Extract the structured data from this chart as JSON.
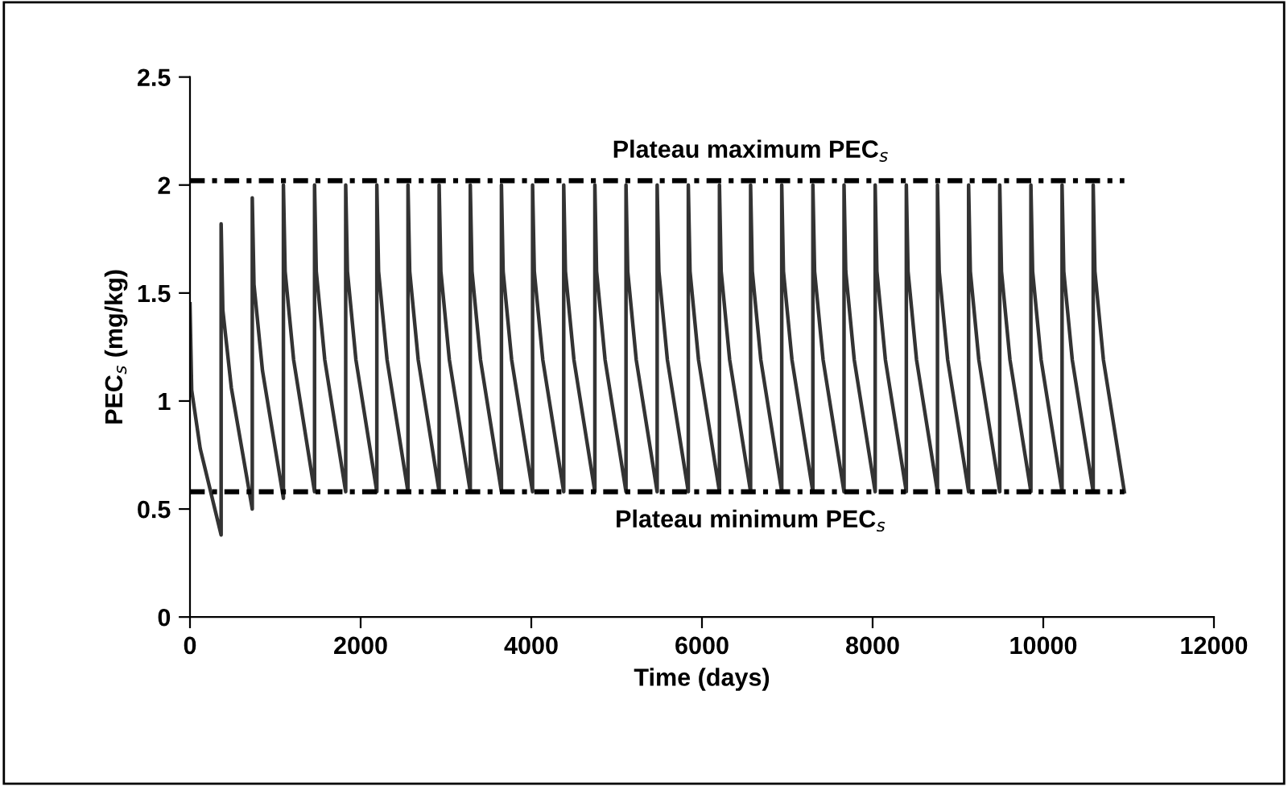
{
  "chart_data": {
    "type": "line",
    "xlabel": "Time (days)",
    "ylabel": "PEC$_{s}$ (mg/kg)",
    "xlim": [
      0,
      12000
    ],
    "xticks": [
      0,
      2000,
      4000,
      6000,
      8000,
      10000,
      12000
    ],
    "ylim": [
      0,
      2.5
    ],
    "yticks": [
      0,
      {
        "value": 0.5,
        "label": "0.5"
      },
      1,
      {
        "value": 1.5,
        "label": "1.5"
      },
      2,
      {
        "value": 2.5,
        "label": "2.5"
      }
    ],
    "grid": false,
    "legend": false,
    "marker": "none",
    "line_style": "solid",
    "series": [
      {
        "color": "#333333",
        "x": [
          0,
          20,
          120,
          365,
          365,
          385,
          485,
          730,
          730,
          750,
          850,
          1095,
          1095,
          1115,
          1215,
          1460,
          1460,
          1480,
          1580,
          1825,
          1825,
          1845,
          1945,
          2190,
          2190,
          2210,
          2310,
          2555,
          2555,
          2575,
          2675,
          2920,
          2920,
          2940,
          3040,
          3285,
          3285,
          3305,
          3405,
          3650,
          3650,
          3670,
          3770,
          4015,
          4015,
          4035,
          4135,
          4380,
          4380,
          4400,
          4500,
          4745,
          4745,
          4765,
          4865,
          5110,
          5110,
          5130,
          5230,
          5475,
          5475,
          5495,
          5595,
          5840,
          5840,
          5860,
          5960,
          6205,
          6205,
          6225,
          6325,
          6570,
          6570,
          6590,
          6690,
          6935,
          6935,
          6955,
          7055,
          7300,
          7300,
          7320,
          7420,
          7665,
          7665,
          7685,
          7785,
          8030,
          8030,
          8050,
          8150,
          8395,
          8395,
          8415,
          8515,
          8760,
          8760,
          8780,
          8880,
          9125,
          9125,
          9145,
          9245,
          9490,
          9490,
          9510,
          9610,
          9855,
          9855,
          9875,
          9975,
          10220,
          10220,
          10240,
          10340,
          10585,
          10585,
          10605,
          10705,
          10950
        ],
        "values": [
          1.45,
          1.05,
          0.78,
          0.38,
          1.82,
          1.42,
          1.06,
          0.5,
          1.94,
          1.54,
          1.14,
          0.55,
          2,
          1.6,
          1.19,
          0.58,
          2,
          1.6,
          1.19,
          0.58,
          2,
          1.6,
          1.19,
          0.58,
          2,
          1.6,
          1.19,
          0.58,
          2,
          1.6,
          1.19,
          0.58,
          2,
          1.6,
          1.19,
          0.58,
          2,
          1.6,
          1.19,
          0.58,
          2,
          1.6,
          1.19,
          0.58,
          2,
          1.6,
          1.19,
          0.58,
          2,
          1.6,
          1.19,
          0.58,
          2,
          1.6,
          1.19,
          0.58,
          2,
          1.6,
          1.19,
          0.58,
          2,
          1.6,
          1.19,
          0.58,
          2,
          1.6,
          1.19,
          0.58,
          2,
          1.6,
          1.19,
          0.58,
          2,
          1.6,
          1.19,
          0.58,
          2,
          1.6,
          1.19,
          0.58,
          2,
          1.6,
          1.19,
          0.58,
          2,
          1.6,
          1.19,
          0.58,
          2,
          1.6,
          1.19,
          0.58,
          2,
          1.6,
          1.19,
          0.58,
          2,
          1.6,
          1.19,
          0.58,
          2,
          1.6,
          1.19,
          0.58,
          2,
          1.6,
          1.19,
          0.58,
          2,
          1.6,
          1.19,
          0.58,
          2,
          1.6,
          1.19,
          0.58,
          2,
          1.6,
          1.19,
          0.58
        ]
      }
    ],
    "ref_lines": [
      {
        "axis": "y",
        "value": 2.02,
        "label": "Plateau maximum PEC$_{s}$",
        "color": "#000000",
        "line_style": "dotted"
      },
      {
        "axis": "y",
        "value": 0.58,
        "label": "Plateau minimum PEC$_{s}$",
        "color": "#000000",
        "line_style": "dotted"
      }
    ]
  }
}
